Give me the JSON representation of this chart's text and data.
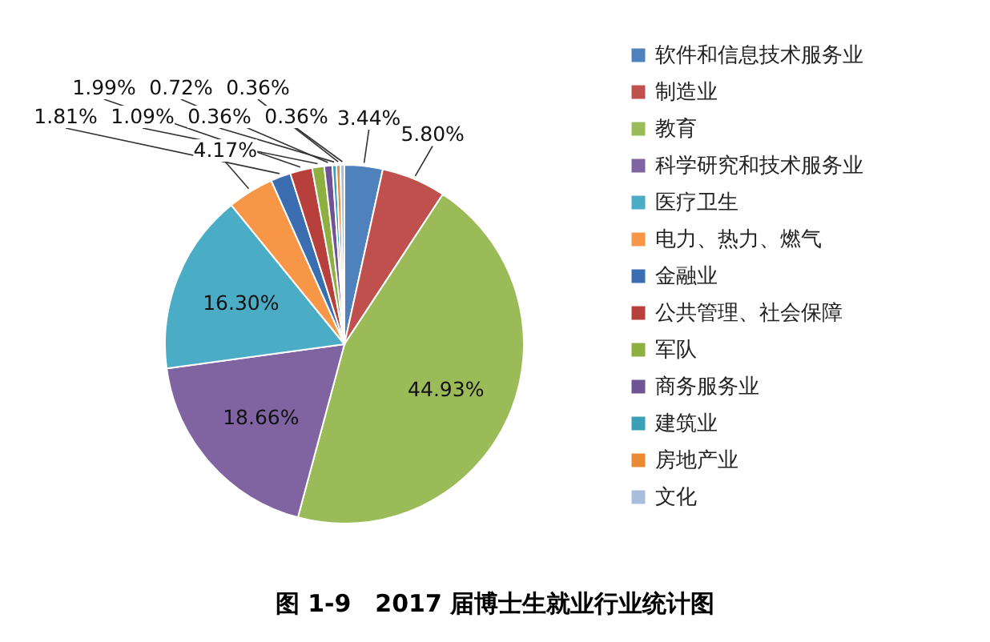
{
  "chart_data": {
    "type": "pie",
    "title": "图 1-9　2017 届博士生就业行业统计图",
    "categories": [
      "软件和信息技术服务业",
      "制造业",
      "教育",
      "科学研究和技术服务业",
      "医疗卫生",
      "电力、热力、燃气",
      "金融业",
      "公共管理、社会保障",
      "军队",
      "商务服务业",
      "建筑业",
      "房地产业",
      "文化"
    ],
    "values": [
      3.44,
      5.8,
      44.93,
      18.66,
      16.3,
      4.17,
      1.81,
      1.99,
      1.09,
      0.72,
      0.36,
      0.36,
      0.36
    ],
    "value_labels": [
      "3.44%",
      "5.80%",
      "44.93%",
      "18.66%",
      "16.30%",
      "4.17%",
      "1.81%",
      "1.99%",
      "1.09%",
      "0.72%",
      "0.36%",
      "0.36%",
      "0.36%"
    ],
    "colors": [
      "#4f81bd",
      "#c0504d",
      "#9bbb59",
      "#8064a2",
      "#4bacc6",
      "#f79646",
      "#3a6eb0",
      "#b8403c",
      "#8db040",
      "#6f5394",
      "#3aa0b8",
      "#ea8a33",
      "#a9bedb"
    ],
    "legend": "right"
  }
}
